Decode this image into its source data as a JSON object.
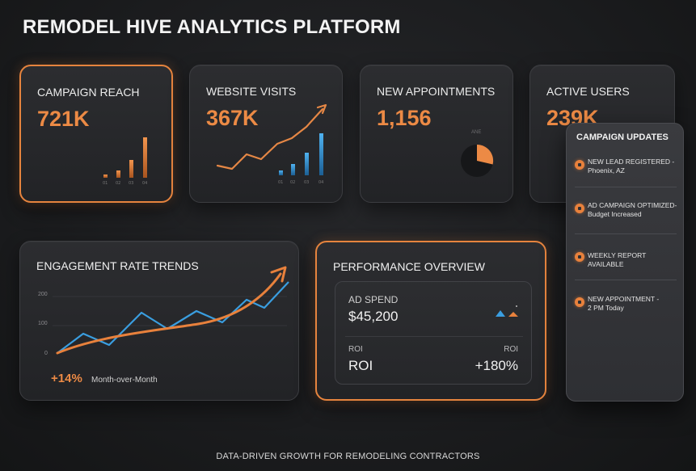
{
  "header": {
    "title": "REMODEL HIVE ANALYTICS PLATFORM"
  },
  "kpis": [
    {
      "label": "CAMPAIGN REACH",
      "value": "721K"
    },
    {
      "label": "WEBSITE VISITS",
      "value": "367K"
    },
    {
      "label": "NEW APPOINTMENTS",
      "value": "1,156"
    },
    {
      "label": "ACTIVE USERS",
      "value": "239K"
    }
  ],
  "appointments_pie": {
    "small_label": "ANE",
    "share": 0.27
  },
  "engagement": {
    "title": "ENGAGEMENT RATE TRENDS",
    "y_ticks": [
      "200",
      "100",
      "0"
    ],
    "change": "+14%",
    "change_label": "Month-over-Month"
  },
  "performance": {
    "title": "PERFORMANCE OVERVIEW",
    "ad_spend_label": "AD SPEND",
    "ad_spend_value": "$45,200",
    "roi_small_left": "ROI",
    "roi_small_right": "ROI",
    "roi_label": "ROI",
    "roi_value": "+180%"
  },
  "updates": {
    "title": "CAMPAIGN UPDATES",
    "items": [
      {
        "line1": "NEW LEAD REGISTERED -",
        "line2": "Phoenix, AZ"
      },
      {
        "line1": "AD CAMPAIGN OPTIMIZED-",
        "line2": "Budget Increased"
      },
      {
        "line1": "WEEKLY REPORT AVAILABLE",
        "line2": ""
      },
      {
        "line1": "NEW APPOINTMENT -",
        "line2": "2 PM Today"
      }
    ]
  },
  "footer": {
    "tagline": "DATA-DRIVEN GROWTH FOR REMODELING CONTRACTORS"
  },
  "colors": {
    "accent": "#e8813c",
    "blue": "#3a9ee0",
    "background": "#1b1c1e"
  }
}
